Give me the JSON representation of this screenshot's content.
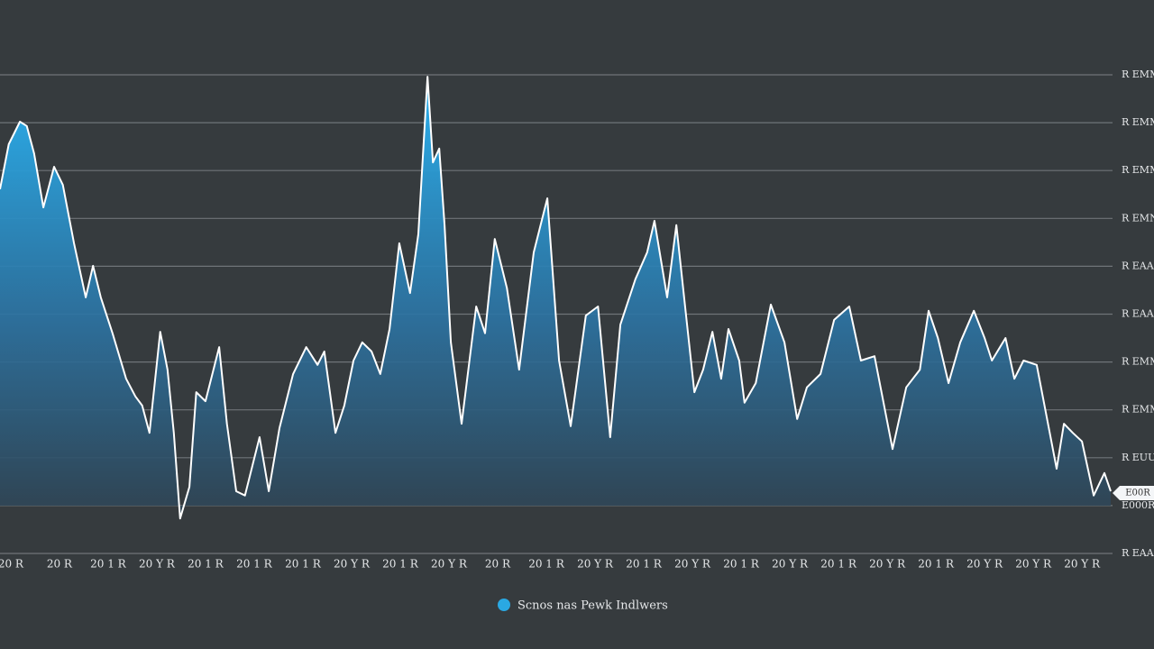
{
  "chart_data": {
    "type": "area",
    "xlim": [
      -0.22,
      22.59
    ],
    "xticks": [
      {
        "value": 0,
        "label": "20 R"
      },
      {
        "value": 1,
        "label": "20 R"
      },
      {
        "value": 2,
        "label": "20 1 R"
      },
      {
        "value": 3,
        "label": "20 Y R"
      },
      {
        "value": 4,
        "label": "20 1 R"
      },
      {
        "value": 5,
        "label": "20 1 R"
      },
      {
        "value": 6,
        "label": "20 1 R"
      },
      {
        "value": 7,
        "label": "20 Y R"
      },
      {
        "value": 8,
        "label": "20 1 R"
      },
      {
        "value": 9,
        "label": "20 Y R"
      },
      {
        "value": 10,
        "label": "20 R"
      },
      {
        "value": 11,
        "label": "20 1 R"
      },
      {
        "value": 12,
        "label": "20 Y R"
      },
      {
        "value": 13,
        "label": "20 1 R"
      },
      {
        "value": 14,
        "label": "20 Y R"
      },
      {
        "value": 15,
        "label": "20 1 R"
      },
      {
        "value": 16,
        "label": "20 Y R"
      },
      {
        "value": 17,
        "label": "20 1 R"
      },
      {
        "value": 18,
        "label": "20 Y R"
      },
      {
        "value": 19,
        "label": "20 1 R"
      },
      {
        "value": 20,
        "label": "20 Y R"
      },
      {
        "value": 21,
        "label": "20 Y R"
      },
      {
        "value": 22,
        "label": "20 Y R"
      }
    ],
    "ylim": [
      0,
      10
    ],
    "yticks": [
      {
        "value": 0,
        "label": "R EAAR"
      },
      {
        "value": 1,
        "label": "E000R"
      },
      {
        "value": 2,
        "label": "R EUUR"
      },
      {
        "value": 3,
        "label": "R EMM"
      },
      {
        "value": 4,
        "label": "R EMM"
      },
      {
        "value": 5,
        "label": "R EAAR"
      },
      {
        "value": 6,
        "label": "R EAAR"
      },
      {
        "value": 7,
        "label": "R EMN"
      },
      {
        "value": 8,
        "label": "R EMM"
      },
      {
        "value": 9,
        "label": "R EMM"
      },
      {
        "value": 10,
        "label": "R EMMN"
      }
    ],
    "grid": true,
    "annotation": "E00R",
    "series": [
      {
        "name": "Scnos nas Pewk Indlwers",
        "color": "#2aa8e2",
        "x": [
          -0.22,
          -0.04,
          0.19,
          0.33,
          0.48,
          0.67,
          0.89,
          1.07,
          1.3,
          1.54,
          1.69,
          1.85,
          2.09,
          2.37,
          2.56,
          2.7,
          2.85,
          3.07,
          3.22,
          3.35,
          3.48,
          3.67,
          3.81,
          4.0,
          4.28,
          4.44,
          4.63,
          4.81,
          5.11,
          5.3,
          5.52,
          5.8,
          6.07,
          6.3,
          6.44,
          6.67,
          6.85,
          7.04,
          7.22,
          7.41,
          7.59,
          7.78,
          7.98,
          8.2,
          8.37,
          8.56,
          8.67,
          8.8,
          8.91,
          9.04,
          9.26,
          9.56,
          9.74,
          9.94,
          10.19,
          10.44,
          10.74,
          11.02,
          11.26,
          11.5,
          11.81,
          12.06,
          12.31,
          12.52,
          12.83,
          13.07,
          13.22,
          13.48,
          13.67,
          13.85,
          14.04,
          14.22,
          14.41,
          14.59,
          14.74,
          14.96,
          15.07,
          15.3,
          15.61,
          15.89,
          16.15,
          16.35,
          16.63,
          16.91,
          17.22,
          17.46,
          17.74,
          18.11,
          18.39,
          18.67,
          18.85,
          19.04,
          19.26,
          19.5,
          19.78,
          20.0,
          20.15,
          20.43,
          20.61,
          20.8,
          21.07,
          21.48,
          21.63,
          21.81,
          22.0,
          22.24,
          22.46,
          22.59
        ],
        "values": [
          7.61,
          8.55,
          9.02,
          8.93,
          8.36,
          7.23,
          8.08,
          7.7,
          6.48,
          5.35,
          6.01,
          5.35,
          4.6,
          3.65,
          3.28,
          3.09,
          2.52,
          4.63,
          3.84,
          2.52,
          0.73,
          1.39,
          3.37,
          3.18,
          4.31,
          2.71,
          1.3,
          1.21,
          2.43,
          1.3,
          2.62,
          3.75,
          4.31,
          3.94,
          4.22,
          2.52,
          3.09,
          4.03,
          4.41,
          4.22,
          3.75,
          4.69,
          6.48,
          5.44,
          6.67,
          9.96,
          8.17,
          8.46,
          6.86,
          4.41,
          2.71,
          5.16,
          4.6,
          6.57,
          5.54,
          3.84,
          6.29,
          7.42,
          4.03,
          2.66,
          4.97,
          5.16,
          2.43,
          4.78,
          5.73,
          6.29,
          6.95,
          5.35,
          6.86,
          5.16,
          3.37,
          3.84,
          4.63,
          3.65,
          4.69,
          4.03,
          3.15,
          3.56,
          5.2,
          4.41,
          2.81,
          3.47,
          3.75,
          4.88,
          5.16,
          4.03,
          4.12,
          2.18,
          3.47,
          3.84,
          5.07,
          4.5,
          3.56,
          4.41,
          5.07,
          4.5,
          4.03,
          4.5,
          3.65,
          4.03,
          3.94,
          1.77,
          2.71,
          2.52,
          2.34,
          1.21,
          1.68,
          1.3
        ]
      }
    ]
  }
}
